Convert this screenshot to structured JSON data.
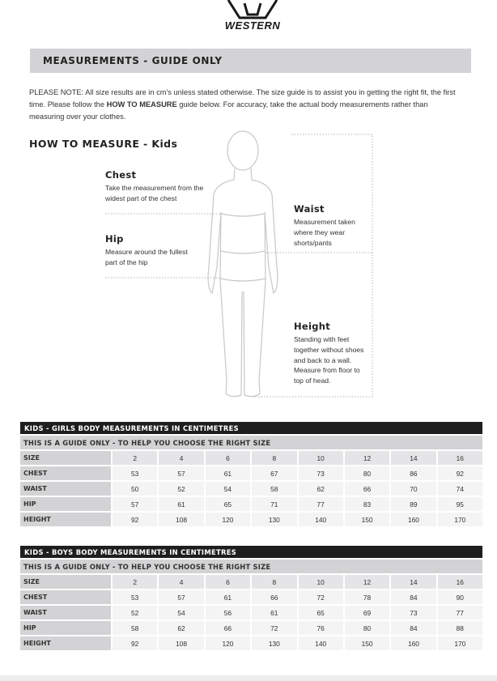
{
  "logo": {
    "text": "WESTERN",
    "icon": "bull-head-icon"
  },
  "banner": {
    "title": "MEASUREMENTS - GUIDE ONLY"
  },
  "note": {
    "prefix": "PLEASE NOTE:  All size results are in cm's unless stated otherwise. The size guide is to assist you in getting the right fit, the first time. Please follow the ",
    "emphasis": "HOW TO MEASURE",
    "suffix": " guide below. For accuracy, take the actual body measurements rather than measuring over your clothes."
  },
  "how_to_measure": {
    "title": "HOW TO MEASURE - Kids",
    "chest": {
      "title": "Chest",
      "text": "Take the measurement from the widest part of the chest"
    },
    "hip": {
      "title": "Hip",
      "text": "Measure around the fullest part of the hip"
    },
    "waist": {
      "title": "Waist",
      "text": "Measurement taken where they wear shorts/pants"
    },
    "height": {
      "title": "Height",
      "text": "Standing with feet together without shoes and back to a wall. Measure from floor to top of head."
    }
  },
  "tables": [
    {
      "title": "KIDS - GIRLS BODY MEASUREMENTS IN CENTIMETRES",
      "subtitle": "THIS IS A GUIDE ONLY - TO HELP YOU CHOOSE THE RIGHT SIZE",
      "header": {
        "label": "SIZE",
        "values": [
          "2",
          "4",
          "6",
          "8",
          "10",
          "12",
          "14",
          "16"
        ]
      },
      "rows": [
        {
          "label": "CHEST",
          "values": [
            "53",
            "57",
            "61",
            "67",
            "73",
            "80",
            "86",
            "92"
          ]
        },
        {
          "label": "WAIST",
          "values": [
            "50",
            "52",
            "54",
            "58",
            "62",
            "66",
            "70",
            "74"
          ]
        },
        {
          "label": "HIP",
          "values": [
            "57",
            "61",
            "65",
            "71",
            "77",
            "83",
            "89",
            "95"
          ]
        },
        {
          "label": "HEIGHT",
          "values": [
            "92",
            "108",
            "120",
            "130",
            "140",
            "150",
            "160",
            "170"
          ]
        }
      ]
    },
    {
      "title": "KIDS - BOYS BODY MEASUREMENTS IN CENTIMETRES",
      "subtitle": "THIS IS A GUIDE ONLY - TO HELP YOU CHOOSE THE RIGHT SIZE",
      "header": {
        "label": "SIZE",
        "values": [
          "2",
          "4",
          "6",
          "8",
          "10",
          "12",
          "14",
          "16"
        ]
      },
      "rows": [
        {
          "label": "CHEST",
          "values": [
            "53",
            "57",
            "61",
            "66",
            "72",
            "78",
            "84",
            "90"
          ]
        },
        {
          "label": "WAIST",
          "values": [
            "52",
            "54",
            "56",
            "61",
            "65",
            "69",
            "73",
            "77"
          ]
        },
        {
          "label": "HIP",
          "values": [
            "58",
            "62",
            "66",
            "72",
            "76",
            "80",
            "84",
            "88"
          ]
        },
        {
          "label": "HEIGHT",
          "values": [
            "92",
            "108",
            "120",
            "130",
            "140",
            "150",
            "160",
            "170"
          ]
        }
      ]
    }
  ]
}
